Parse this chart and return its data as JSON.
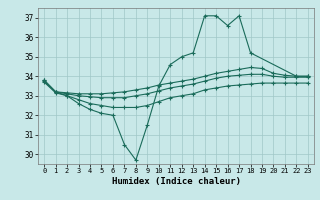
{
  "title": "",
  "xlabel": "Humidex (Indice chaleur)",
  "bg_color": "#c8e8e8",
  "grid_color": "#a0c8c8",
  "line_color": "#1a6b5a",
  "xlim": [
    -0.5,
    23.5
  ],
  "ylim": [
    29.5,
    37.5
  ],
  "yticks": [
    30,
    31,
    32,
    33,
    34,
    35,
    36,
    37
  ],
  "xticks": [
    0,
    1,
    2,
    3,
    4,
    5,
    6,
    7,
    8,
    9,
    10,
    11,
    12,
    13,
    14,
    15,
    16,
    17,
    18,
    19,
    20,
    21,
    22,
    23
  ],
  "line1_x": [
    0,
    1,
    2,
    3,
    4,
    5,
    6,
    7,
    8,
    9,
    10,
    11,
    12,
    13,
    14,
    15,
    16,
    17,
    18,
    22,
    23
  ],
  "line1_y": [
    33.8,
    33.2,
    33.0,
    32.6,
    32.3,
    32.1,
    32.0,
    30.5,
    29.7,
    31.5,
    33.5,
    34.6,
    35.0,
    35.2,
    37.1,
    37.1,
    36.6,
    37.1,
    35.2,
    34.0,
    34.0
  ],
  "line2_x": [
    0,
    1,
    2,
    3,
    4,
    5,
    6,
    7,
    8,
    9,
    10,
    11,
    12,
    13,
    14,
    15,
    16,
    17,
    18,
    19,
    20,
    21,
    22,
    23
  ],
  "line2_y": [
    33.8,
    33.2,
    33.15,
    33.1,
    33.1,
    33.1,
    33.15,
    33.2,
    33.3,
    33.4,
    33.55,
    33.65,
    33.75,
    33.85,
    34.0,
    34.15,
    34.25,
    34.35,
    34.45,
    34.4,
    34.15,
    34.05,
    34.0,
    34.0
  ],
  "line3_x": [
    0,
    1,
    2,
    3,
    4,
    5,
    6,
    7,
    8,
    9,
    10,
    11,
    12,
    13,
    14,
    15,
    16,
    17,
    18,
    19,
    20,
    21,
    22,
    23
  ],
  "line3_y": [
    33.75,
    33.2,
    33.1,
    33.0,
    32.95,
    32.9,
    32.9,
    32.9,
    33.0,
    33.1,
    33.25,
    33.4,
    33.5,
    33.6,
    33.75,
    33.9,
    34.0,
    34.05,
    34.1,
    34.1,
    34.0,
    33.95,
    33.95,
    33.95
  ],
  "line4_x": [
    0,
    1,
    2,
    3,
    4,
    5,
    6,
    7,
    8,
    9,
    10,
    11,
    12,
    13,
    14,
    15,
    16,
    17,
    18,
    19,
    20,
    21,
    22,
    23
  ],
  "line4_y": [
    33.7,
    33.15,
    33.0,
    32.8,
    32.6,
    32.5,
    32.4,
    32.4,
    32.4,
    32.5,
    32.7,
    32.9,
    33.0,
    33.1,
    33.3,
    33.4,
    33.5,
    33.55,
    33.6,
    33.65,
    33.65,
    33.65,
    33.65,
    33.65
  ]
}
